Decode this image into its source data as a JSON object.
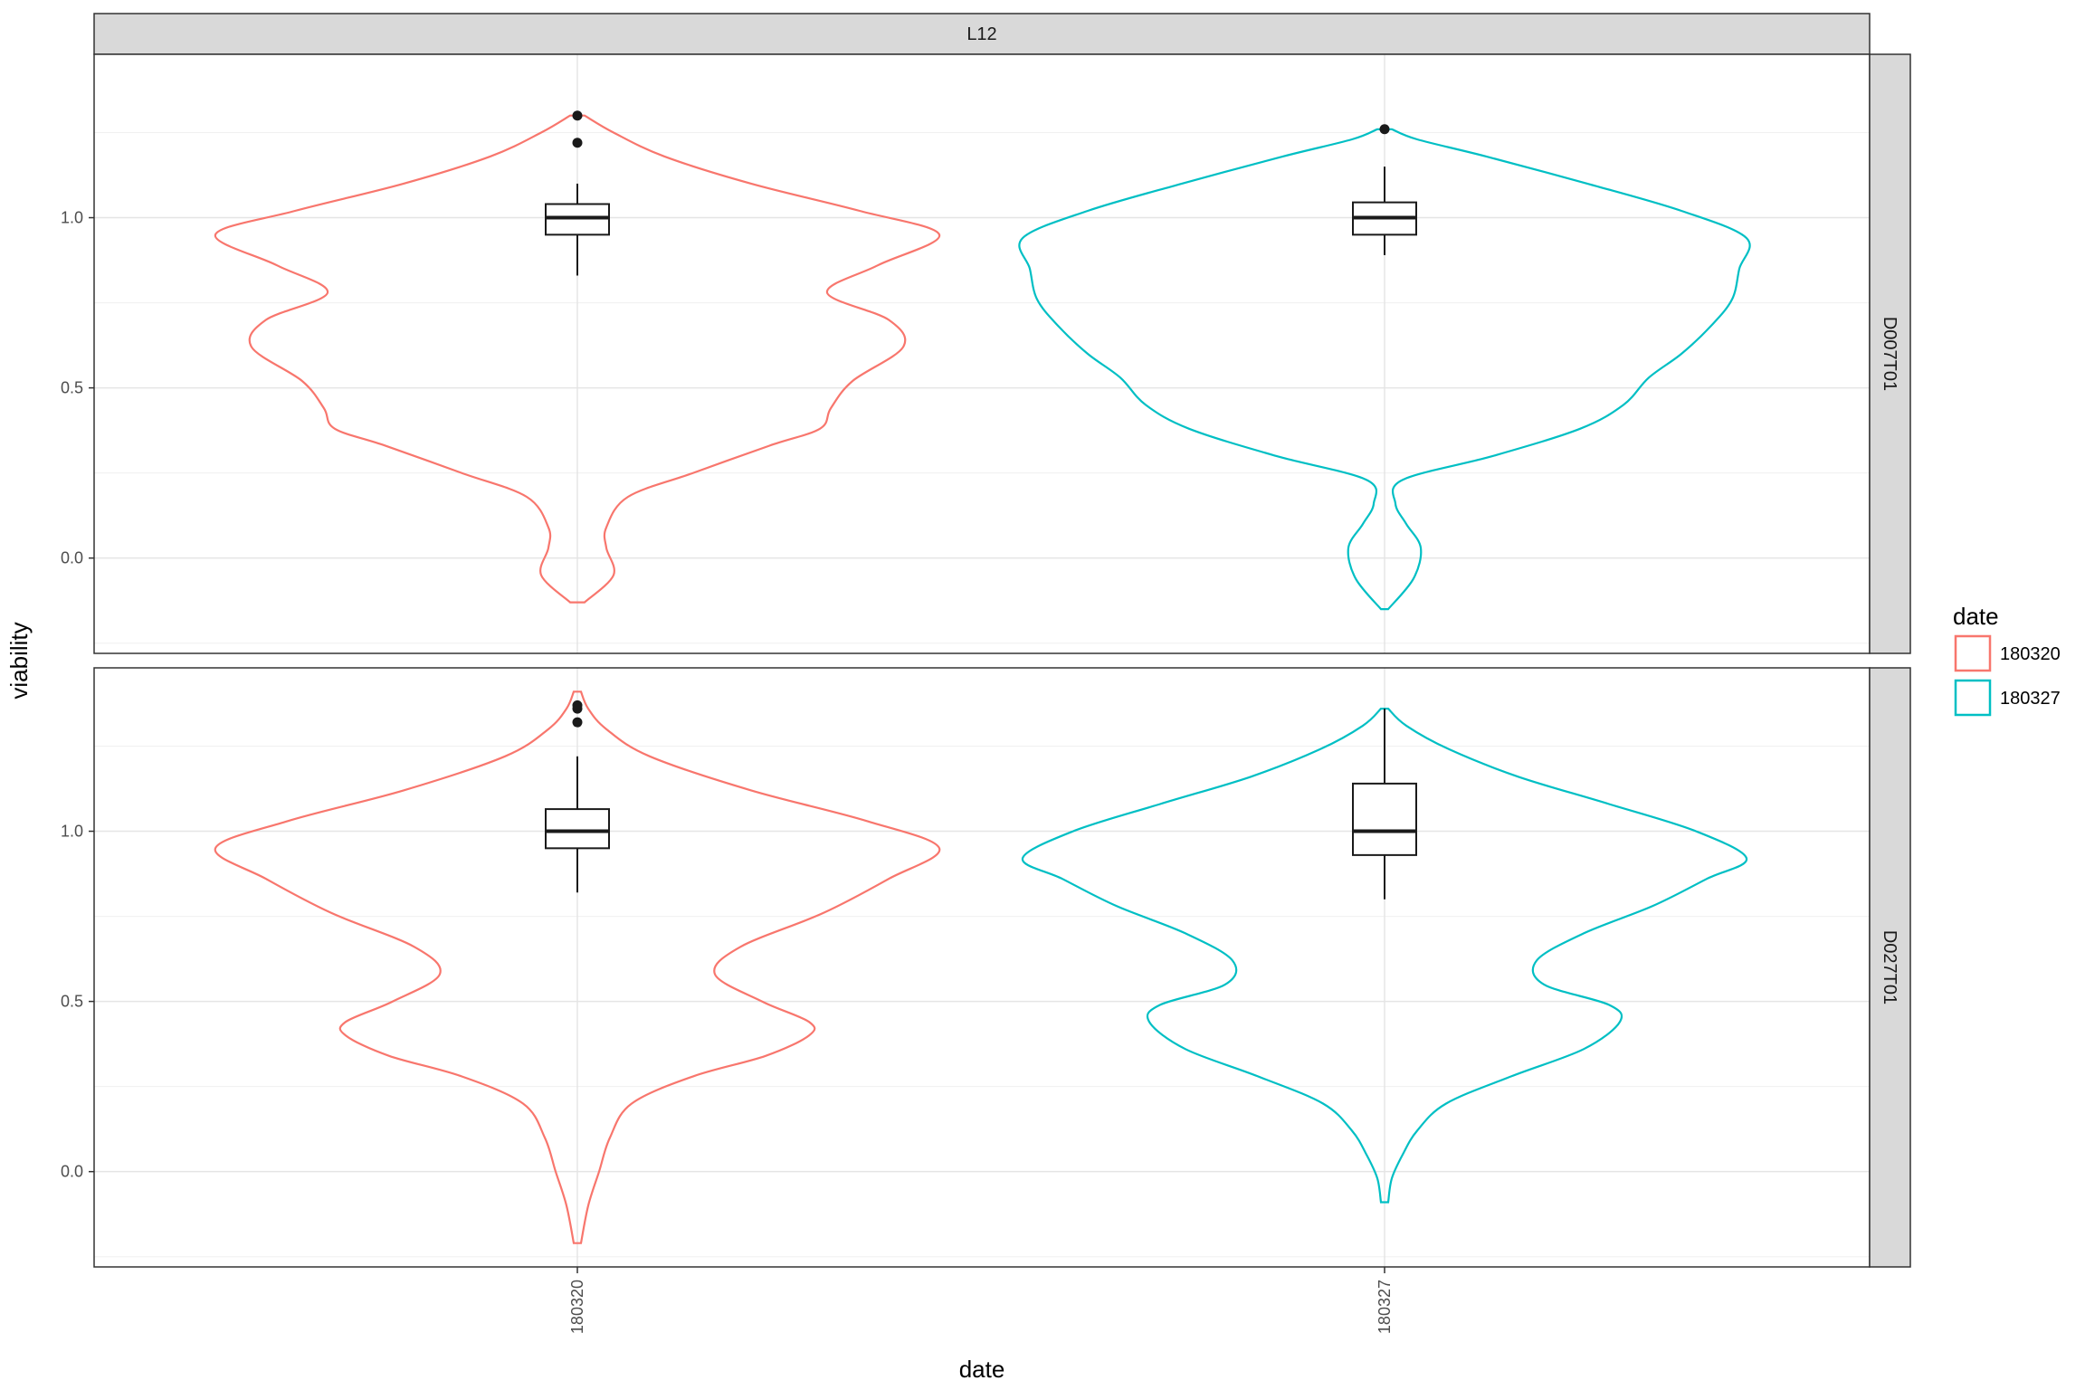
{
  "chart_data": {
    "type": "violin",
    "facet_column": "L12",
    "facet_rows": [
      "D007T01",
      "D027T01"
    ],
    "xlabel": "date",
    "ylabel": "viability",
    "categories": [
      "180320",
      "180327"
    ],
    "y_ticks": [
      "0.0",
      "0.5",
      "1.0"
    ],
    "ylim": [
      -0.28,
      1.48
    ],
    "legend": {
      "title": "date",
      "position": "right",
      "entries": [
        {
          "label": "180320",
          "color": "#F8766D"
        },
        {
          "label": "180327",
          "color": "#00BFC4"
        }
      ]
    },
    "grid": true,
    "panels": [
      {
        "row": "D007T01",
        "groups": [
          {
            "date": "180320",
            "color": "#F8766D",
            "violin_range": [
              -0.13,
              1.3
            ],
            "box": {
              "whisker_low": 0.83,
              "q1": 0.95,
              "median": 1.0,
              "q3": 1.04,
              "whisker_high": 1.1
            },
            "outliers": [
              1.22,
              1.3
            ]
          },
          {
            "date": "180327",
            "color": "#00BFC4",
            "violin_range": [
              -0.15,
              1.26
            ],
            "box": {
              "whisker_low": 0.89,
              "q1": 0.95,
              "median": 1.0,
              "q3": 1.045,
              "whisker_high": 1.15
            },
            "outliers": [
              1.26
            ]
          }
        ]
      },
      {
        "row": "D027T01",
        "groups": [
          {
            "date": "180320",
            "color": "#F8766D",
            "violin_range": [
              -0.21,
              1.41
            ],
            "box": {
              "whisker_low": 0.82,
              "q1": 0.95,
              "median": 1.0,
              "q3": 1.065,
              "whisker_high": 1.22
            },
            "outliers": [
              1.32,
              1.36,
              1.37
            ]
          },
          {
            "date": "180327",
            "color": "#00BFC4",
            "violin_range": [
              -0.09,
              1.36
            ],
            "box": {
              "whisker_low": 0.8,
              "q1": 0.93,
              "median": 1.0,
              "q3": 1.14,
              "whisker_high": 1.36
            },
            "outliers": []
          }
        ]
      }
    ]
  }
}
